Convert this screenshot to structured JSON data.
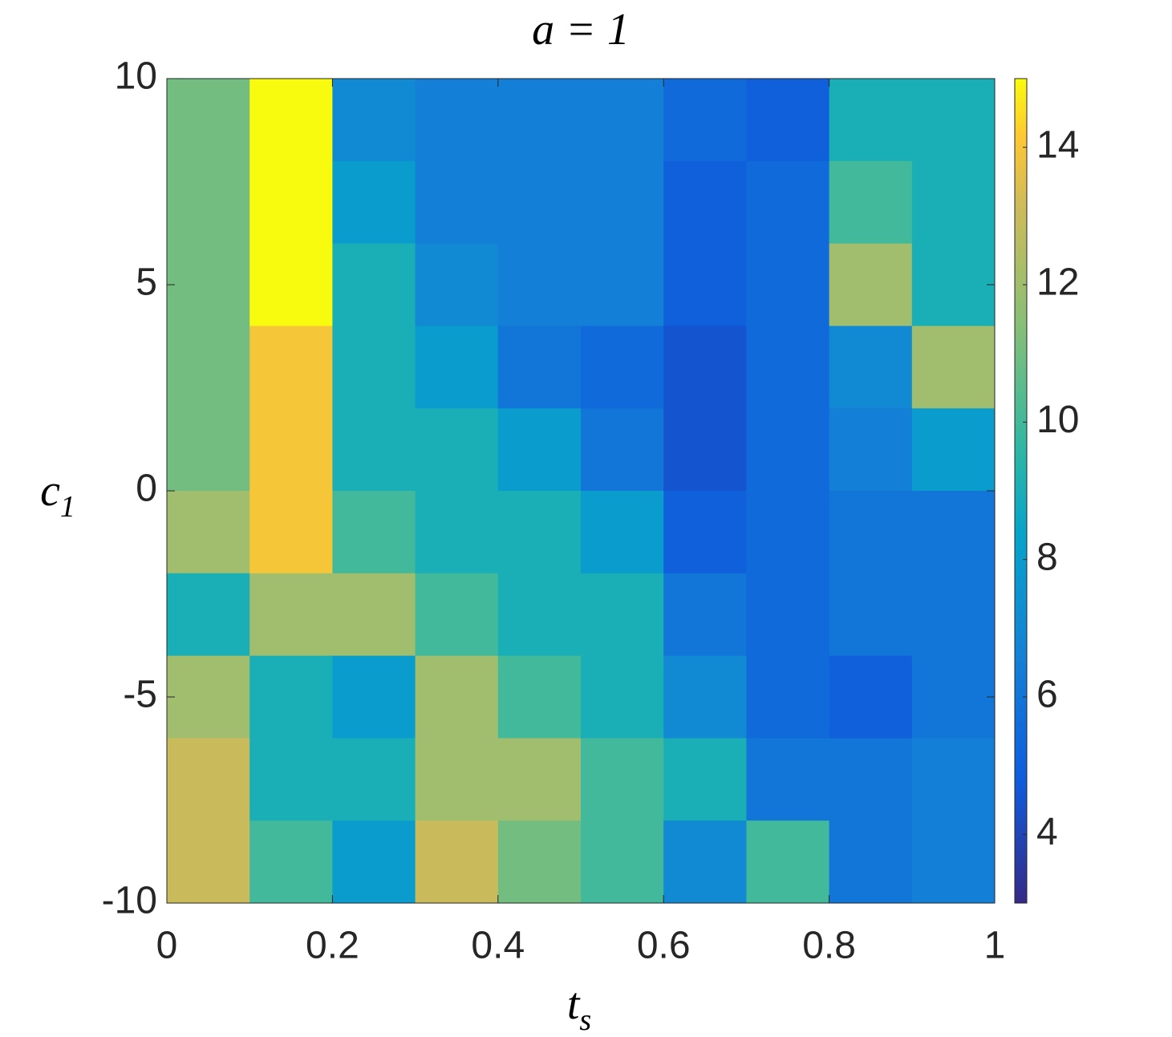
{
  "chart_data": {
    "type": "heatmap",
    "title": "a = 1",
    "x_label": "t_s",
    "y_label": "c_1",
    "x": [
      0.05,
      0.15,
      0.25,
      0.35,
      0.45,
      0.55,
      0.65,
      0.75,
      0.85,
      0.95
    ],
    "y": [
      9,
      7,
      5,
      3,
      1,
      -1,
      -3,
      -5,
      -7,
      -9
    ],
    "z": [
      [
        11,
        15,
        7,
        6.5,
        6.5,
        6.5,
        5.5,
        5,
        9,
        9
      ],
      [
        11,
        15,
        8,
        6.5,
        6.5,
        6.5,
        5,
        5.5,
        10,
        9
      ],
      [
        11,
        15,
        9,
        7,
        6.5,
        6.5,
        5,
        5.5,
        12,
        9
      ],
      [
        11,
        14,
        9,
        8,
        6,
        5.5,
        4.5,
        5.5,
        7,
        12
      ],
      [
        11,
        14,
        9,
        9,
        8,
        6,
        4.5,
        5.5,
        6.5,
        8
      ],
      [
        12,
        14,
        10,
        9,
        9,
        8,
        5,
        5.5,
        6,
        6
      ],
      [
        9,
        12,
        12,
        10,
        9,
        9,
        6,
        5.5,
        6,
        6
      ],
      [
        12,
        9,
        8,
        12,
        10,
        9,
        7,
        5.5,
        5,
        6
      ],
      [
        13,
        9,
        9,
        12,
        12,
        10,
        9,
        6,
        6,
        6.5
      ],
      [
        13,
        10,
        8,
        13,
        11,
        10,
        7,
        10,
        6,
        6.5
      ]
    ],
    "xlim": [
      0,
      1
    ],
    "ylim": [
      -10,
      10
    ],
    "xticks": [
      0,
      0.2,
      0.4,
      0.6,
      0.8,
      1
    ],
    "yticks": [
      -10,
      -5,
      0,
      5,
      10
    ],
    "colormap": "parula",
    "clim": [
      3,
      15
    ],
    "cticks": [
      4,
      6,
      8,
      10,
      12,
      14
    ]
  }
}
